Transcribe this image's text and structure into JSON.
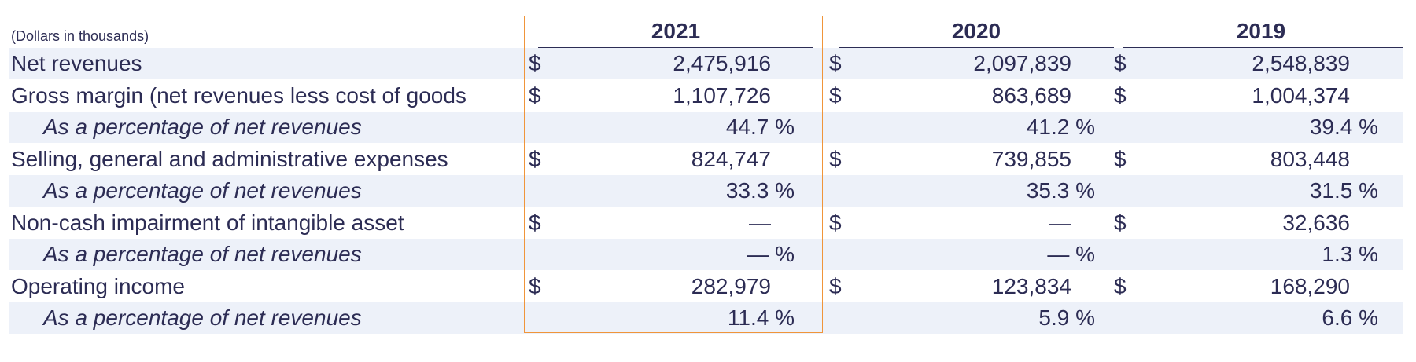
{
  "table": {
    "units_label": "(Dollars in thousands)",
    "years": [
      "2021",
      "2020",
      "2019"
    ],
    "rows": [
      {
        "label": "Net revenues",
        "italic": false,
        "values": [
          {
            "dollar": "$",
            "value": "2,475,916"
          },
          {
            "dollar": "$",
            "value": "2,097,839"
          },
          {
            "dollar": "$",
            "value": "2,548,839"
          }
        ]
      },
      {
        "label": "Gross margin (net revenues less cost of goods",
        "italic": false,
        "values": [
          {
            "dollar": "$",
            "value": "1,107,726"
          },
          {
            "dollar": "$",
            "value": "863,689"
          },
          {
            "dollar": "$",
            "value": "1,004,374"
          }
        ]
      },
      {
        "label": "As a percentage of net revenues",
        "italic": true,
        "values": [
          {
            "dollar": "",
            "value": "44.7 %"
          },
          {
            "dollar": "",
            "value": "41.2 %"
          },
          {
            "dollar": "",
            "value": "39.4 %"
          }
        ]
      },
      {
        "label": "Selling, general and administrative expenses",
        "italic": false,
        "values": [
          {
            "dollar": "$",
            "value": "824,747"
          },
          {
            "dollar": "$",
            "value": "739,855"
          },
          {
            "dollar": "$",
            "value": "803,448"
          }
        ]
      },
      {
        "label": "As a percentage of net revenues",
        "italic": true,
        "values": [
          {
            "dollar": "",
            "value": "33.3 %"
          },
          {
            "dollar": "",
            "value": "35.3 %"
          },
          {
            "dollar": "",
            "value": "31.5 %"
          }
        ]
      },
      {
        "label": "Non-cash impairment of intangible asset",
        "italic": false,
        "values": [
          {
            "dollar": "$",
            "value": "—"
          },
          {
            "dollar": "$",
            "value": "—"
          },
          {
            "dollar": "$",
            "value": "32,636"
          }
        ]
      },
      {
        "label": "As a percentage of net revenues",
        "italic": true,
        "values": [
          {
            "dollar": "",
            "value": "— %"
          },
          {
            "dollar": "",
            "value": "— %"
          },
          {
            "dollar": "",
            "value": "1.3 %"
          }
        ]
      },
      {
        "label": "Operating income",
        "italic": false,
        "values": [
          {
            "dollar": "$",
            "value": "282,979"
          },
          {
            "dollar": "$",
            "value": "123,834"
          },
          {
            "dollar": "$",
            "value": "168,290"
          }
        ]
      },
      {
        "label": "As a percentage of net revenues",
        "italic": true,
        "values": [
          {
            "dollar": "",
            "value": "11.4 %"
          },
          {
            "dollar": "",
            "value": "5.9 %"
          },
          {
            "dollar": "",
            "value": "6.6 %"
          }
        ]
      }
    ]
  },
  "colors": {
    "text": "#2c2c54",
    "row_shade": "#edf1f9",
    "highlight_border": "#f0953a"
  }
}
